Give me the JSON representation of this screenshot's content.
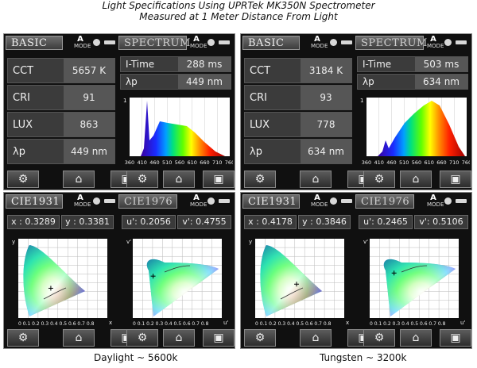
{
  "header": {
    "line1": "Light Specifications Using UPRTek MK350N Spectrometer",
    "line2": "Measured at 1 Meter Distance From Light"
  },
  "tabs": {
    "basic": "BASIC",
    "spectrum": "SPECTRUM",
    "cie1931": "CIE1931",
    "cie1976": "CIE1976",
    "mode_letter": "A",
    "mode_word": "MODE"
  },
  "labels": {
    "cct": "CCT",
    "cri": "CRI",
    "lux": "LUX",
    "lp": "λp",
    "itime": "I-Time",
    "x": "x",
    "y": "y",
    "u": "u'",
    "v": "v'",
    "spec_y": "1",
    "spec_x_ticks": [
      "360",
      "410",
      "460",
      "510",
      "560",
      "610",
      "660",
      "710",
      "760"
    ],
    "cie_x_ticks": "0 0.1 0.2 0.3 0.4 0.5 0.6 0.7 0.8",
    "cie_x": "x",
    "cie_y": "y",
    "cie_u": "u'",
    "cie_v": "v'"
  },
  "daylight": {
    "caption": "Daylight ~ 5600k",
    "cct": "5657 K",
    "cri": "91",
    "lux": "863",
    "lp": "449 nm",
    "itime": "288 ms",
    "lp2": "449 nm",
    "x": "x : 0.3289",
    "y": "y : 0.3381",
    "u": "u': 0.2056",
    "v": "v': 0.4755"
  },
  "tungsten": {
    "caption": "Tungsten ~ 3200k",
    "cct": "3184 K",
    "cri": "93",
    "lux": "778",
    "lp": "634 nm",
    "itime": "503 ms",
    "lp2": "634 nm",
    "x": "x : 0.4178",
    "y": "y : 0.3846",
    "u": "u': 0.2465",
    "v": "v': 0.5106"
  }
}
